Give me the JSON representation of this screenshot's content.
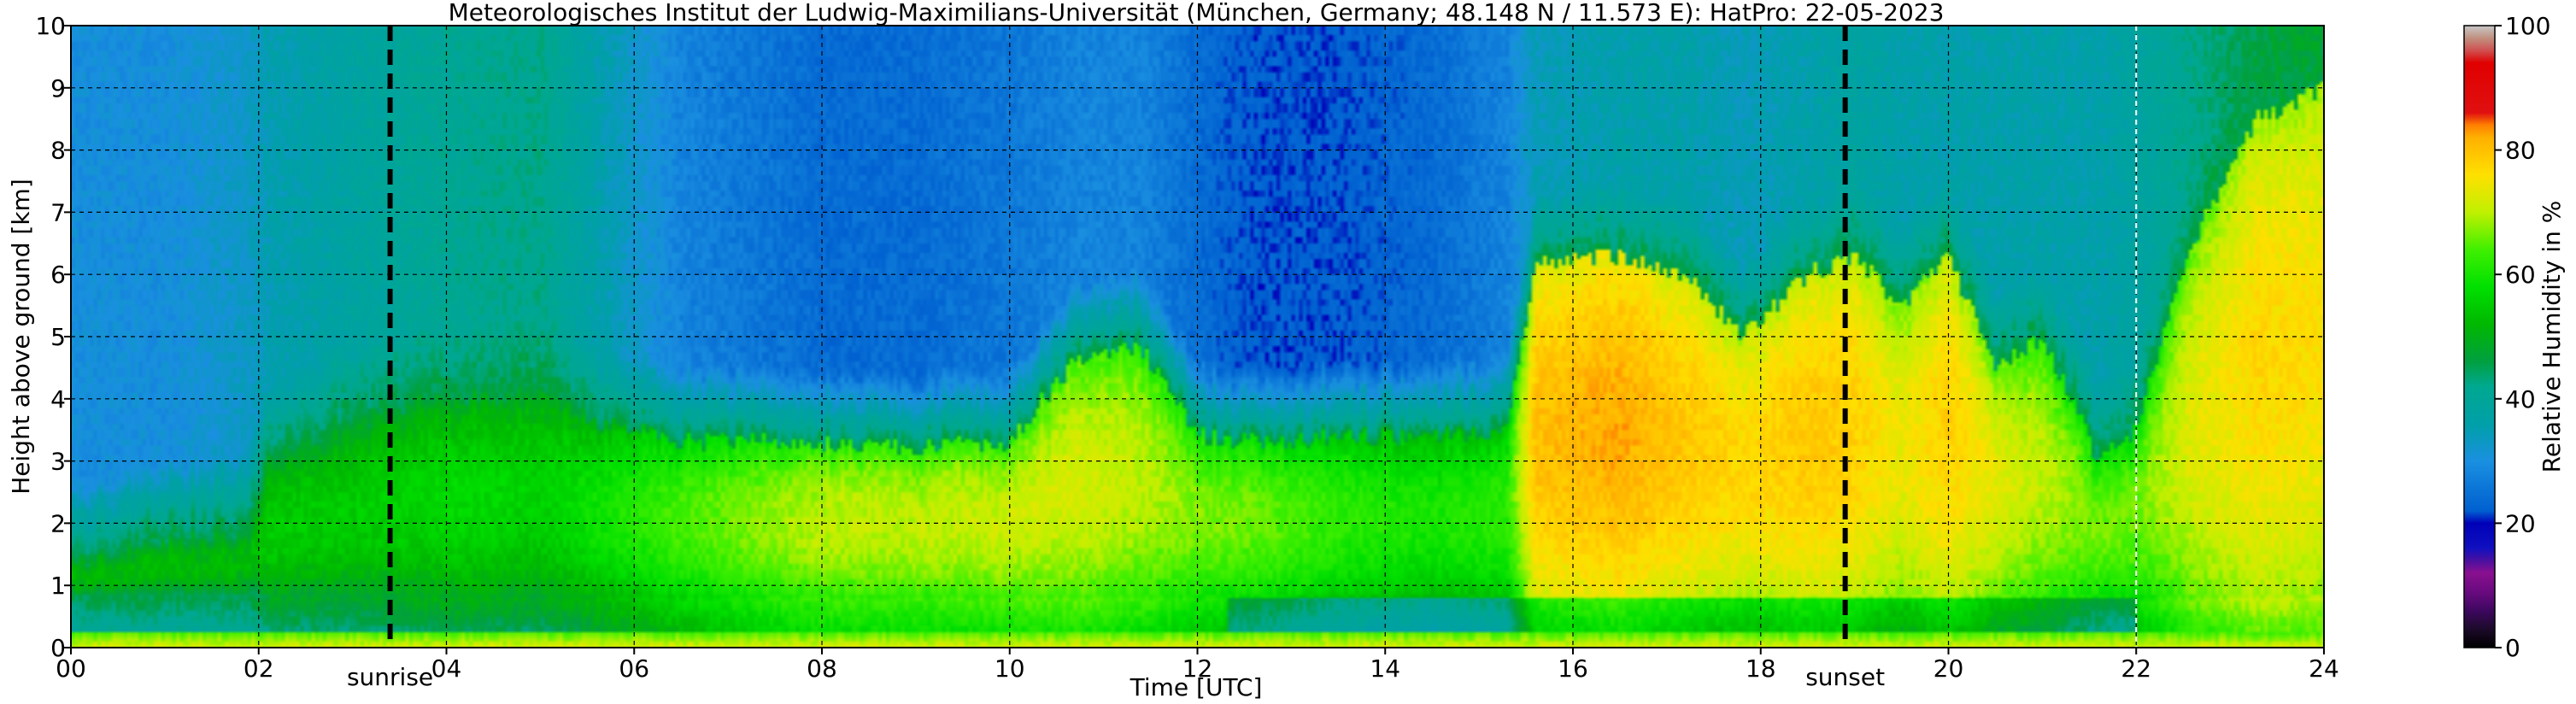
{
  "chart_data": {
    "type": "heatmap",
    "title": "Meteorologisches Institut der Ludwig-Maximilians-Universität (München, Germany; 48.148 N / 11.573 E):    HatPro: 22-05-2023",
    "xlabel": "Time [UTC]",
    "ylabel": "Height above ground [km]",
    "xlim": [
      0,
      24
    ],
    "ylim": [
      0,
      10
    ],
    "x_ticks": [
      "00",
      "02",
      "04",
      "06",
      "08",
      "10",
      "12",
      "14",
      "16",
      "18",
      "20",
      "22",
      "24"
    ],
    "y_ticks": [
      "0",
      "1",
      "2",
      "3",
      "4",
      "5",
      "6",
      "7",
      "8",
      "9",
      "10"
    ],
    "grid": true,
    "colorbar": {
      "label": "Relative Humidity in %",
      "range": [
        0,
        100
      ],
      "ticks": [
        "0",
        "20",
        "40",
        "60",
        "80",
        "100"
      ],
      "stops": [
        {
          "value": 0,
          "color": "#000000"
        },
        {
          "value": 3,
          "color": "#1c0a2a"
        },
        {
          "value": 6,
          "color": "#3e0860"
        },
        {
          "value": 9,
          "color": "#6a0a80"
        },
        {
          "value": 12,
          "color": "#8a1090"
        },
        {
          "value": 14,
          "color": "#4a10a0"
        },
        {
          "value": 16,
          "color": "#1010c0"
        },
        {
          "value": 20,
          "color": "#0000b8"
        },
        {
          "value": 22,
          "color": "#0060d0"
        },
        {
          "value": 30,
          "color": "#1a90e0"
        },
        {
          "value": 36,
          "color": "#00a0a8"
        },
        {
          "value": 42,
          "color": "#00a890"
        },
        {
          "value": 46,
          "color": "#00a040"
        },
        {
          "value": 52,
          "color": "#00b800"
        },
        {
          "value": 58,
          "color": "#00e000"
        },
        {
          "value": 64,
          "color": "#40f000"
        },
        {
          "value": 70,
          "color": "#c0f000"
        },
        {
          "value": 76,
          "color": "#ffe000"
        },
        {
          "value": 82,
          "color": "#ffb000"
        },
        {
          "value": 84,
          "color": "#ff8000"
        },
        {
          "value": 86,
          "color": "#e01010"
        },
        {
          "value": 94,
          "color": "#e00000"
        },
        {
          "value": 96,
          "color": "#d05050"
        },
        {
          "value": 98,
          "color": "#c09080"
        },
        {
          "value": 100,
          "color": "#c8c8c8"
        }
      ]
    },
    "events": [
      {
        "label": "sunrise",
        "time": 3.4
      },
      {
        "label": "sunset",
        "time": 18.9
      }
    ],
    "extra_vline": {
      "time": 22.0,
      "color": "#ffffff"
    },
    "humidity_profile_keys": {
      "times": [
        0,
        1,
        1.9,
        2.1,
        3,
        3.6,
        4.2,
        5,
        5.6,
        6.5,
        8,
        9,
        10,
        10.7,
        11.4,
        12,
        12.6,
        13.5,
        14.5,
        15.3,
        15.6,
        16.5,
        17.2,
        17.8,
        18.5,
        19,
        19.5,
        20,
        20.5,
        21,
        21.6,
        22,
        22.6,
        23.3,
        24
      ],
      "boundary_layer_top_km": [
        1.4,
        1.8,
        1.9,
        3.1,
        3.6,
        3.9,
        4.0,
        4.1,
        3.6,
        3.3,
        3.3,
        3.2,
        3.3,
        4.6,
        4.8,
        3.4,
        3.3,
        3.4,
        3.4,
        3.5,
        6.2,
        6.3,
        6.0,
        5.0,
        6.0,
        6.3,
        5.5,
        6.3,
        4.5,
        5.0,
        3.0,
        3.5,
        6.5,
        8.5,
        9.0
      ],
      "boundary_layer_peak_rh": [
        52,
        52,
        52,
        55,
        55,
        56,
        57,
        56,
        59,
        64,
        70,
        70,
        71,
        72,
        70,
        67,
        66,
        62,
        60,
        62,
        80,
        82,
        79,
        77,
        79,
        78,
        74,
        78,
        73,
        70,
        66,
        66,
        73,
        77,
        76
      ],
      "upper_air_rh": [
        30,
        30,
        33,
        35,
        38,
        40,
        41,
        42,
        36,
        28,
        24,
        24,
        26,
        28,
        28,
        24,
        22,
        22,
        24,
        28,
        34,
        36,
        36,
        34,
        36,
        38,
        36,
        36,
        36,
        36,
        36,
        38,
        42,
        46,
        48
      ]
    }
  }
}
